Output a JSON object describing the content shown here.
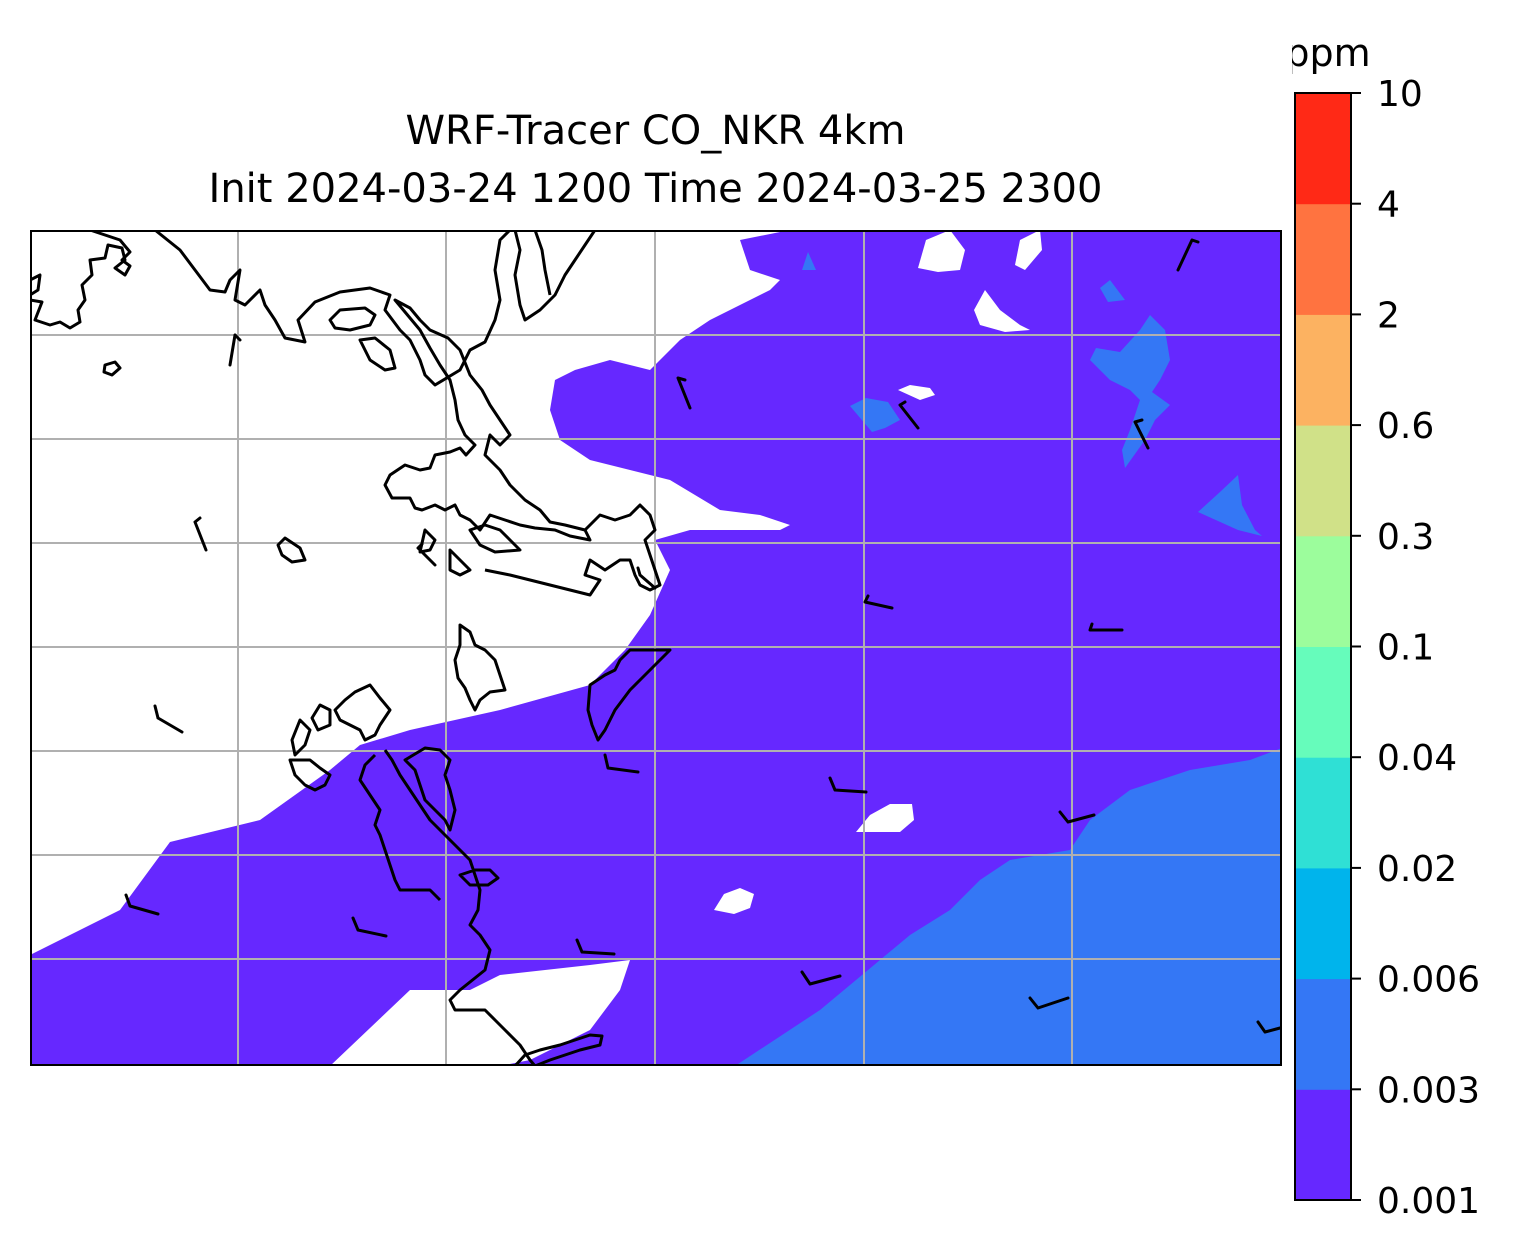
{
  "title": {
    "line1": "WRF-Tracer CO_NKR 4km",
    "line2": "Init 2024-03-24 1200 Time 2024-03-25 2300"
  },
  "map": {
    "layers": [
      "tracer-fill",
      "coastline",
      "gridlines",
      "wind-barbs"
    ],
    "colors": {
      "land_or_below_min": "#ffffff",
      "coastline": "#000000",
      "gridline": "#b0b0b0"
    }
  },
  "colorbar": {
    "unit": "ppm",
    "levels": [
      "0.001",
      "0.003",
      "0.006",
      "0.02",
      "0.04",
      "0.1",
      "0.3",
      "0.6",
      "2",
      "4",
      "10"
    ],
    "colors": [
      "#6628ff",
      "#3477f5",
      "#00b4ec",
      "#2fe0d5",
      "#66fcbb",
      "#9cfd9c",
      "#d0e188",
      "#fcb261",
      "#ff7340",
      "#ff2916"
    ]
  }
}
